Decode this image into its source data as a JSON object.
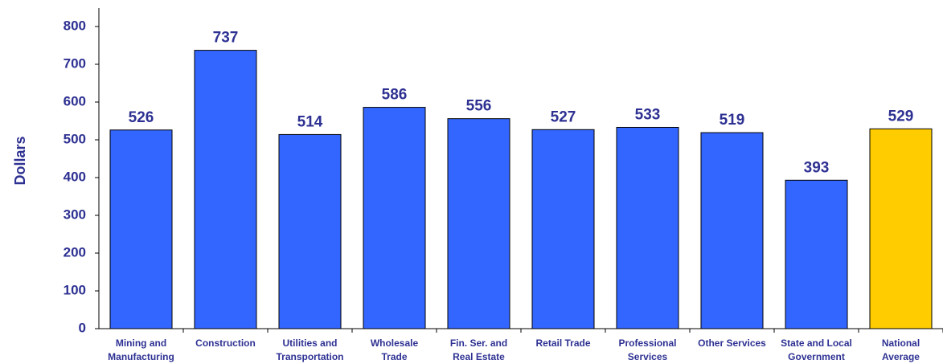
{
  "chart_data": {
    "type": "bar",
    "title": "",
    "xlabel": "",
    "ylabel": "Dollars",
    "ylim": [
      0,
      800
    ],
    "yticks": [
      0,
      100,
      200,
      300,
      400,
      500,
      600,
      700,
      800
    ],
    "grid": false,
    "categories": [
      [
        "Mining and",
        "Manufacturing"
      ],
      [
        "Construction"
      ],
      [
        "Utilities and",
        "Transportation"
      ],
      [
        "Wholesale",
        "Trade"
      ],
      [
        "Fin. Ser. and",
        "Real Estate"
      ],
      [
        "Retail Trade"
      ],
      [
        "Professional",
        "Services"
      ],
      [
        "Other Services"
      ],
      [
        "State and Local",
        "Government"
      ],
      [
        "National",
        "Average"
      ]
    ],
    "values": [
      526,
      737,
      514,
      586,
      556,
      527,
      533,
      519,
      393,
      529
    ],
    "bar_colors": [
      "#3366ff",
      "#3366ff",
      "#3366ff",
      "#3366ff",
      "#3366ff",
      "#3366ff",
      "#3366ff",
      "#3366ff",
      "#3366ff",
      "#ffcc00"
    ],
    "label_color": "#2e3192"
  }
}
